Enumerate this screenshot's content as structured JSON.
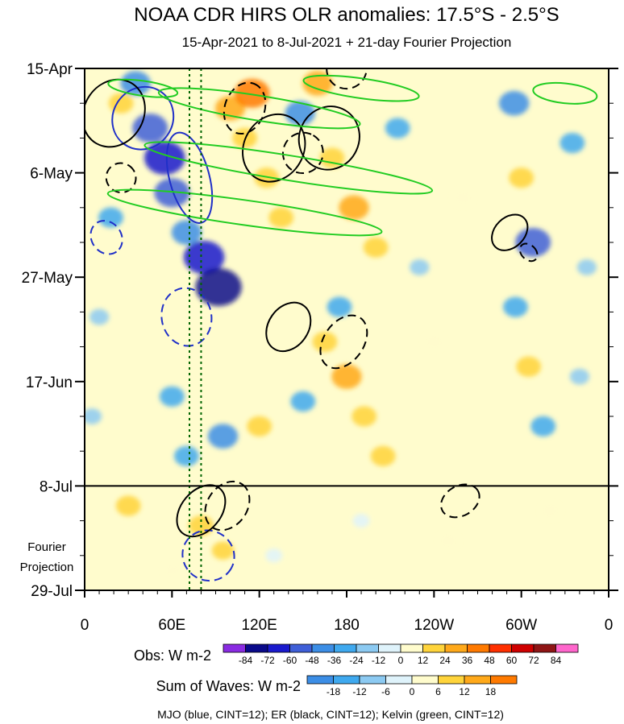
{
  "chart_data": {
    "type": "heatmap",
    "title": "NOAA CDR HIRS OLR anomalies: 17.5°S - 2.5°S",
    "subtitle": "15-Apr-2021 to 8-Jul-2021 + 21-day Fourier Projection",
    "x_axis": {
      "tick_labels": [
        "0",
        "60E",
        "120E",
        "180",
        "120W",
        "60W",
        "0"
      ],
      "tick_lon": [
        0,
        60,
        120,
        180,
        240,
        300,
        360
      ],
      "range": [
        0,
        360
      ]
    },
    "y_axis": {
      "tick_labels": [
        "15-Apr",
        "6-May",
        "27-May",
        "17-Jun",
        "8-Jul",
        "29-Jul"
      ],
      "tick_day": [
        0,
        21,
        42,
        63,
        84,
        105
      ],
      "range": [
        0,
        105
      ],
      "projection_start_day": 84,
      "projection_label": [
        "Fourier",
        "Projection"
      ]
    },
    "obs_colorbar": {
      "label": "Obs: W m-2",
      "levels": [
        "-84",
        "-72",
        "-60",
        "-48",
        "-36",
        "-24",
        "-12",
        "0",
        "12",
        "24",
        "36",
        "48",
        "60",
        "72",
        "84"
      ],
      "colors": [
        "#8a2be2",
        "#0a0a8a",
        "#1a1acd",
        "#3f5fd8",
        "#3c8ee6",
        "#3fa9ef",
        "#8ccaf2",
        "#dff3fb",
        "#fffccd",
        "#ffd43b",
        "#ffa91a",
        "#ff7a00",
        "#ff3000",
        "#cf0000",
        "#8f1515",
        "#ff66cc"
      ]
    },
    "waves_colorbar": {
      "label": "Sum of Waves: W m-2",
      "levels": [
        "-18",
        "-12",
        "-6",
        "0",
        "6",
        "12",
        "18"
      ],
      "colors": [
        "#3c8ee6",
        "#3fa9ef",
        "#8ccaf2",
        "#dff3fb",
        "#fffccd",
        "#ffd43b",
        "#ffa91a",
        "#ff7a00"
      ]
    },
    "footer": "MJO (blue, CINT=12); ER (black, CINT=12); Kelvin (green, CINT=12)",
    "reference_lines_lon": [
      72,
      80
    ],
    "anomaly_blobs": [
      {
        "lon": 25,
        "day": 7,
        "v": 24
      },
      {
        "lon": 35,
        "day": 3,
        "v": -36
      },
      {
        "lon": 45,
        "day": 12,
        "v": -48
      },
      {
        "lon": 55,
        "day": 18,
        "v": -60
      },
      {
        "lon": 60,
        "day": 25,
        "v": -48
      },
      {
        "lon": 70,
        "day": 33,
        "v": -36
      },
      {
        "lon": 82,
        "day": 38,
        "v": -60
      },
      {
        "lon": 92,
        "day": 44,
        "v": -72
      },
      {
        "lon": 18,
        "day": 30,
        "v": -24
      },
      {
        "lon": 10,
        "day": 50,
        "v": -12
      },
      {
        "lon": 100,
        "day": 8,
        "v": 36
      },
      {
        "lon": 110,
        "day": 14,
        "v": 24
      },
      {
        "lon": 125,
        "day": 22,
        "v": 24
      },
      {
        "lon": 115,
        "day": 5,
        "v": 48
      },
      {
        "lon": 135,
        "day": 30,
        "v": 24
      },
      {
        "lon": 148,
        "day": 9,
        "v": -36
      },
      {
        "lon": 160,
        "day": 3,
        "v": 36
      },
      {
        "lon": 170,
        "day": 18,
        "v": 24
      },
      {
        "lon": 185,
        "day": 28,
        "v": 36
      },
      {
        "lon": 200,
        "day": 36,
        "v": 24
      },
      {
        "lon": 175,
        "day": 48,
        "v": -24
      },
      {
        "lon": 165,
        "day": 55,
        "v": 24
      },
      {
        "lon": 180,
        "day": 62,
        "v": 36
      },
      {
        "lon": 192,
        "day": 70,
        "v": 24
      },
      {
        "lon": 205,
        "day": 78,
        "v": 24
      },
      {
        "lon": 150,
        "day": 67,
        "v": -24
      },
      {
        "lon": 120,
        "day": 72,
        "v": 24
      },
      {
        "lon": 95,
        "day": 74,
        "v": -36
      },
      {
        "lon": 70,
        "day": 78,
        "v": -24
      },
      {
        "lon": 60,
        "day": 66,
        "v": -24
      },
      {
        "lon": 215,
        "day": 12,
        "v": -24
      },
      {
        "lon": 230,
        "day": 40,
        "v": -12
      },
      {
        "lon": 240,
        "day": 55,
        "v": 12
      },
      {
        "lon": 260,
        "day": 26,
        "v": 12
      },
      {
        "lon": 295,
        "day": 7,
        "v": -36
      },
      {
        "lon": 300,
        "day": 22,
        "v": 24
      },
      {
        "lon": 308,
        "day": 35,
        "v": -48
      },
      {
        "lon": 296,
        "day": 48,
        "v": -24
      },
      {
        "lon": 305,
        "day": 60,
        "v": 24
      },
      {
        "lon": 315,
        "day": 72,
        "v": -24
      },
      {
        "lon": 335,
        "day": 15,
        "v": -24
      },
      {
        "lon": 345,
        "day": 40,
        "v": -12
      },
      {
        "lon": 340,
        "day": 62,
        "v": -12
      },
      {
        "lon": 5,
        "day": 70,
        "v": -12
      },
      {
        "lon": 30,
        "day": 88,
        "v": 24
      },
      {
        "lon": 80,
        "day": 92,
        "v": 24
      },
      {
        "lon": 95,
        "day": 97,
        "v": 18
      },
      {
        "lon": 190,
        "day": 91,
        "v": -6
      },
      {
        "lon": 250,
        "day": 95,
        "v": 12
      },
      {
        "lon": 320,
        "day": 89,
        "v": 12
      },
      {
        "lon": 130,
        "day": 98,
        "v": -6
      },
      {
        "lon": 60,
        "day": 101,
        "v": 6
      }
    ],
    "mjo_contours": [
      {
        "lon": 40,
        "day": 10,
        "dlon": 22,
        "dday": 6,
        "angle": -55,
        "dashed": false
      },
      {
        "lon": 72,
        "day": 22,
        "dlon": 32,
        "dday": 4,
        "angle": 75,
        "dashed": false
      },
      {
        "lon": 15,
        "day": 34,
        "dlon": 12,
        "dday": 3,
        "angle": 55,
        "dashed": true
      },
      {
        "lon": 70,
        "day": 50,
        "dlon": 20,
        "dday": 5,
        "angle": 80,
        "dashed": true
      },
      {
        "lon": 85,
        "day": 98,
        "dlon": 18,
        "dday": 5,
        "angle": 30,
        "dashed": true
      }
    ],
    "er_contours": [
      {
        "lon": 20,
        "day": 9,
        "dlon": 24,
        "dday": 6,
        "angle": -60,
        "dashed": false
      },
      {
        "lon": 25,
        "day": 22,
        "dlon": 10,
        "dday": 3,
        "angle": -55,
        "dashed": true
      },
      {
        "lon": 110,
        "day": 8,
        "dlon": 18,
        "dday": 4,
        "angle": -70,
        "dashed": true
      },
      {
        "lon": 130,
        "day": 16,
        "dlon": 24,
        "dday": 6,
        "angle": -60,
        "dashed": false
      },
      {
        "lon": 168,
        "day": 14,
        "dlon": 22,
        "dday": 6,
        "angle": -65,
        "dashed": false
      },
      {
        "lon": 150,
        "day": 17,
        "dlon": 14,
        "dday": 4,
        "angle": -60,
        "dashed": true
      },
      {
        "lon": 140,
        "day": 52,
        "dlon": 18,
        "dday": 4,
        "angle": -55,
        "dashed": false
      },
      {
        "lon": 178,
        "day": 55,
        "dlon": 20,
        "dday": 4,
        "angle": -55,
        "dashed": true
      },
      {
        "lon": 80,
        "day": 89,
        "dlon": 20,
        "dday": 4,
        "angle": -50,
        "dashed": false
      },
      {
        "lon": 98,
        "day": 88,
        "dlon": 18,
        "dday": 4,
        "angle": -55,
        "dashed": true
      },
      {
        "lon": 180,
        "day": 0,
        "dlon": 14,
        "dday": 4,
        "angle": -60,
        "dashed": true
      },
      {
        "lon": 292,
        "day": 33,
        "dlon": 14,
        "dday": 3,
        "angle": -45,
        "dashed": false
      },
      {
        "lon": 305,
        "day": 37,
        "dlon": 5,
        "dday": 2,
        "angle": -45,
        "dashed": true
      },
      {
        "lon": 258,
        "day": 87,
        "dlon": 14,
        "dday": 3,
        "angle": -30,
        "dashed": true
      }
    ],
    "kelvin_contours": [
      {
        "lon": 120,
        "day": 8,
        "dlon": 70,
        "dday": 2.5,
        "angle": 9
      },
      {
        "lon": 140,
        "day": 20,
        "dlon": 100,
        "dday": 2.5,
        "angle": 9
      },
      {
        "lon": 110,
        "day": 29,
        "dlon": 95,
        "dday": 2.5,
        "angle": 8
      },
      {
        "lon": 190,
        "day": 4,
        "dlon": 40,
        "dday": 2,
        "angle": 8
      },
      {
        "lon": 330,
        "day": 5,
        "dlon": 22,
        "dday": 2,
        "angle": 6
      },
      {
        "lon": 40,
        "day": 4,
        "dlon": 24,
        "dday": 1.5,
        "angle": 8
      }
    ]
  }
}
